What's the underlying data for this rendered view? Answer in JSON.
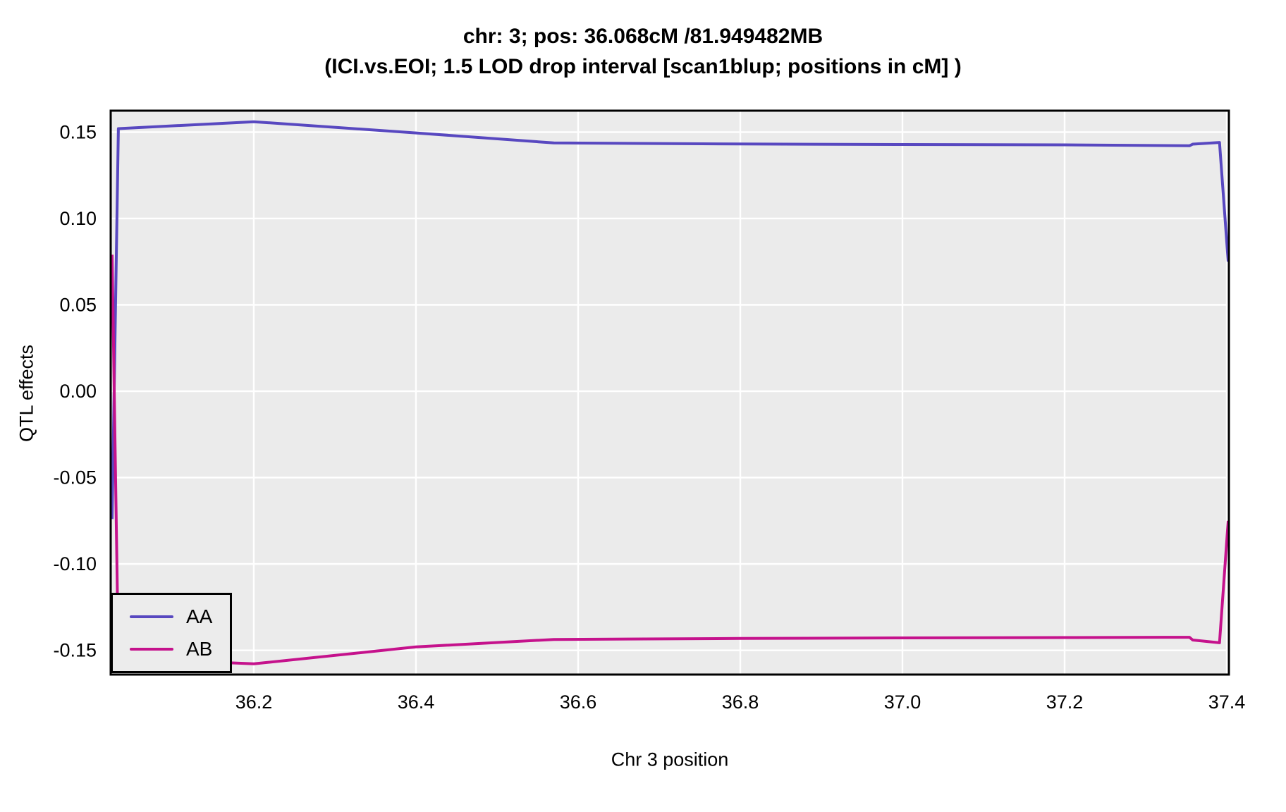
{
  "chart_data": {
    "type": "line",
    "title": "chr: 3; pos: 36.068cM /81.949482MB",
    "subtitle": "(ICI.vs.EOI; 1.5 LOD drop interval [scan1blup; positions in cM] )",
    "xlabel": "Chr 3 position",
    "ylabel": "QTL effects",
    "xlim": [
      36.0235,
      37.4026
    ],
    "ylim": [
      -0.164,
      0.1624
    ],
    "x_tick_labels": [
      "36.2",
      "36.4",
      "36.6",
      "36.8",
      "37.0",
      "37.2",
      "37.4"
    ],
    "y_tick_labels": [
      "0.15",
      "0.10",
      "0.05",
      "0.00",
      "-0.05",
      "-0.10",
      "-0.15"
    ],
    "grid": true,
    "panel_background": "#EBEBEB",
    "grid_color": "#FFFFFF",
    "border_color": "#000000",
    "legend_position": "bottom-left",
    "x": [
      36.0252,
      36.033,
      36.2,
      36.4,
      36.57,
      36.8,
      37.0,
      37.2,
      37.354,
      37.358,
      37.391,
      37.4017
    ],
    "series": [
      {
        "name": "AA",
        "color": "#5848C0",
        "values": [
          -0.074,
          0.152,
          0.156,
          0.1495,
          0.1437,
          0.1431,
          0.1428,
          0.1426,
          0.1421,
          0.143,
          0.144,
          0.075
        ]
      },
      {
        "name": "AB",
        "color": "#C5128C",
        "values": [
          0.079,
          -0.1545,
          -0.1578,
          -0.148,
          -0.1437,
          -0.1431,
          -0.1428,
          -0.1426,
          -0.1424,
          -0.144,
          -0.1456,
          -0.075
        ]
      }
    ]
  }
}
